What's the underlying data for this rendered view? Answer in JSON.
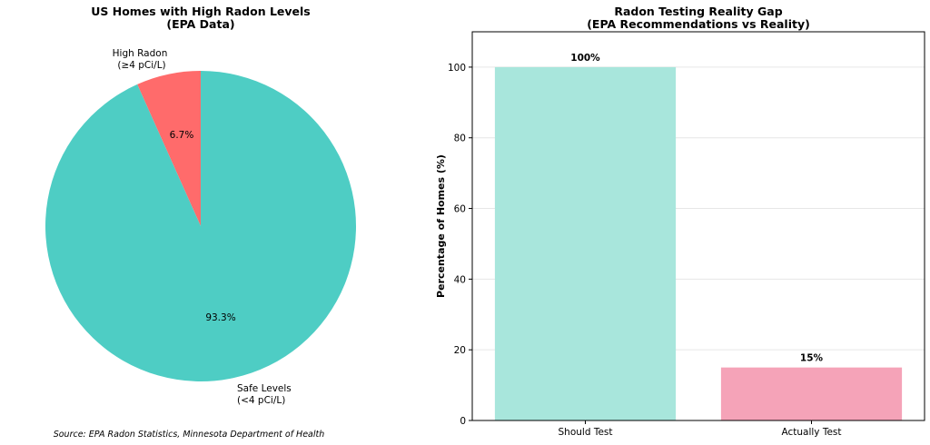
{
  "chart_data": [
    {
      "type": "pie",
      "title": "US Homes with High Radon Levels",
      "subtitle": "(EPA Data)",
      "slices": [
        {
          "label_line1": "High Radon",
          "label_line2": "(≥4 pCi/L)",
          "value": 6.7,
          "pct_label": "6.7%",
          "color": "#ff6b6b"
        },
        {
          "label_line1": "Safe Levels",
          "label_line2": "(<4 pCi/L)",
          "value": 93.3,
          "pct_label": "93.3%",
          "color": "#4ecdc4"
        }
      ]
    },
    {
      "type": "bar",
      "title": "Radon Testing Reality Gap",
      "subtitle": "(EPA Recommendations vs Reality)",
      "categories": [
        "Should Test",
        "Actually Test"
      ],
      "values": [
        100,
        15
      ],
      "value_labels": [
        "100%",
        "15%"
      ],
      "colors": [
        "#a8e6dc",
        "#f5a3b8"
      ],
      "ylabel": "Percentage of Homes (%)",
      "ylim": [
        0,
        110
      ],
      "yticks": [
        0,
        20,
        40,
        60,
        80,
        100
      ],
      "grid": true
    }
  ],
  "source_note": "Source: EPA Radon Statistics, Minnesota Department of Health"
}
